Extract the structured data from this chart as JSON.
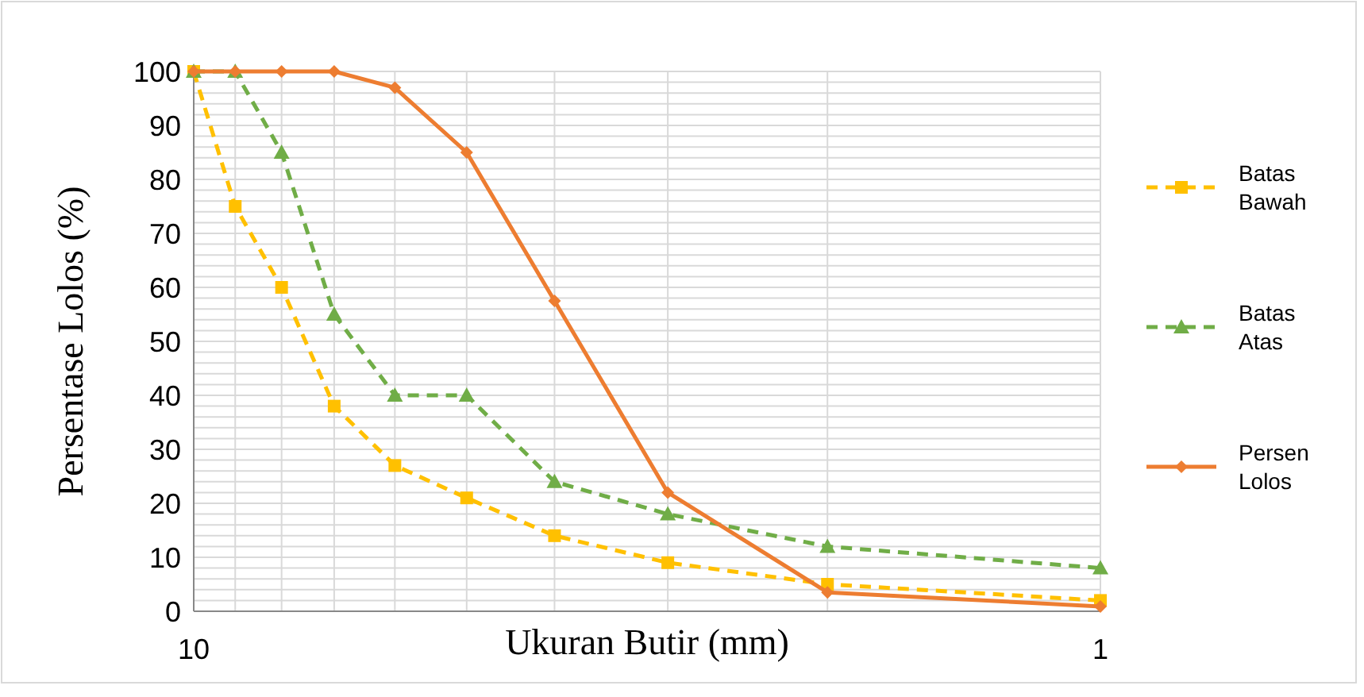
{
  "chart_data": {
    "type": "line",
    "xlabel": "Ukuran Butir (mm)",
    "ylabel": "Persentase Lolos (%)",
    "log": "x",
    "xlim": [
      10,
      1
    ],
    "xticks": [
      10,
      {
        "value": 9,
        "label": null
      },
      {
        "value": 8,
        "label": null
      },
      {
        "value": 7,
        "label": null
      },
      {
        "value": 6,
        "label": null
      },
      {
        "value": 5,
        "label": null
      },
      {
        "value": 4,
        "label": null
      },
      {
        "value": 3,
        "label": null
      },
      {
        "value": 2,
        "label": null
      },
      1
    ],
    "ylim": [
      0,
      100
    ],
    "yticks": [
      0,
      {
        "value": 2,
        "label": null
      },
      {
        "value": 4,
        "label": null
      },
      {
        "value": 6,
        "label": null
      },
      {
        "value": 8,
        "label": null
      },
      10,
      {
        "value": 12,
        "label": null
      },
      {
        "value": 14,
        "label": null
      },
      {
        "value": 16,
        "label": null
      },
      {
        "value": 18,
        "label": null
      },
      20,
      {
        "value": 22,
        "label": null
      },
      {
        "value": 24,
        "label": null
      },
      {
        "value": 26,
        "label": null
      },
      {
        "value": 28,
        "label": null
      },
      30,
      {
        "value": 32,
        "label": null
      },
      {
        "value": 34,
        "label": null
      },
      {
        "value": 36,
        "label": null
      },
      {
        "value": 38,
        "label": null
      },
      40,
      {
        "value": 42,
        "label": null
      },
      {
        "value": 44,
        "label": null
      },
      {
        "value": 46,
        "label": null
      },
      {
        "value": 48,
        "label": null
      },
      50,
      {
        "value": 52,
        "label": null
      },
      {
        "value": 54,
        "label": null
      },
      {
        "value": 56,
        "label": null
      },
      {
        "value": 58,
        "label": null
      },
      60,
      {
        "value": 62,
        "label": null
      },
      {
        "value": 64,
        "label": null
      },
      {
        "value": 66,
        "label": null
      },
      {
        "value": 68,
        "label": null
      },
      70,
      {
        "value": 72,
        "label": null
      },
      {
        "value": 74,
        "label": null
      },
      {
        "value": 76,
        "label": null
      },
      {
        "value": 78,
        "label": null
      },
      80,
      {
        "value": 82,
        "label": null
      },
      {
        "value": 84,
        "label": null
      },
      {
        "value": 86,
        "label": null
      },
      {
        "value": 88,
        "label": null
      },
      90,
      {
        "value": 92,
        "label": null
      },
      {
        "value": 94,
        "label": null
      },
      {
        "value": 96,
        "label": null
      },
      {
        "value": 98,
        "label": null
      },
      100
    ],
    "grid": true,
    "legend": "right",
    "x": [
      10,
      9,
      8,
      7,
      6,
      5,
      4,
      3,
      2,
      1
    ],
    "series": [
      {
        "name": "Batas Bawah",
        "color": "#ffc000",
        "marker": "square",
        "line_style": "dashed",
        "values": [
          100,
          75,
          60,
          38,
          27,
          21,
          14,
          9,
          5,
          2
        ]
      },
      {
        "name": "Batas Atas",
        "color": "#70ad47",
        "marker": "triangle",
        "line_style": "dashed",
        "values": [
          100,
          100,
          85,
          55,
          40,
          40,
          24,
          18,
          12,
          8
        ]
      },
      {
        "name": "Persen Lolos",
        "color": "#ed7d31",
        "marker": "diamond",
        "line_style": "solid",
        "values": [
          100,
          100,
          100,
          100,
          97,
          85,
          57.5,
          22,
          3.5,
          0.9
        ]
      }
    ]
  }
}
